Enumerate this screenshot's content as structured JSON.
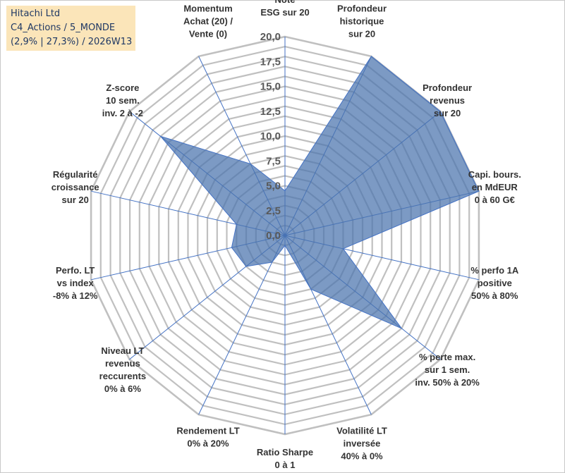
{
  "title_box": {
    "line1": "Hitachi Ltd",
    "line2": "C4_Actions / 5_MONDE",
    "line3": "(2,9% | 27,3%) / 2026W13"
  },
  "colors": {
    "grid": "#c0c0c0",
    "spoke": "#4472c4",
    "fill": "#4a73ad",
    "stroke": "#4472c4",
    "title_bg": "#fbe5b9"
  },
  "chart_data": {
    "type": "radar",
    "range": [
      0,
      20
    ],
    "tick_step": 2.5,
    "tick_labels": [
      "0,0",
      "2,5",
      "5,0",
      "7,5",
      "10,0",
      "12,5",
      "15,0",
      "17,5",
      "20,0"
    ],
    "axes": [
      {
        "label": [
          "Note",
          "ESG sur 20"
        ],
        "value": 4.5
      },
      {
        "label": [
          "Profondeur",
          "historique",
          "sur 20"
        ],
        "value": 20
      },
      {
        "label": [
          "Profondeur",
          "revenus",
          "sur 20"
        ],
        "value": 20
      },
      {
        "label": [
          "Capi. bours.",
          "en MdEUR",
          "0 à 60 G€"
        ],
        "value": 20
      },
      {
        "label": [
          "% perfo 1A",
          "positive",
          "50% à 80%"
        ],
        "value": 6
      },
      {
        "label": [
          "% perte max.",
          "sur 1 sem.",
          "inv. 50% à 20%"
        ],
        "value": 15
      },
      {
        "label": [
          "Volatilité LT",
          "inversée",
          "40% à 0%"
        ],
        "value": 6
      },
      {
        "label": [
          "Ratio Sharpe",
          "0 à 1"
        ],
        "value": 1
      },
      {
        "label": [
          "Rendement LT",
          "0% à 20%"
        ],
        "value": 3
      },
      {
        "label": [
          "Niveau LT",
          "revenus",
          "reccurents",
          "0% à 6%"
        ],
        "value": 5
      },
      {
        "label": [
          "Perfo. LT",
          "vs index",
          "-8% à 12%"
        ],
        "value": 5.5
      },
      {
        "label": [
          "Régularité",
          "croissance",
          "sur 20"
        ],
        "value": 5
      },
      {
        "label": [
          "Z-score",
          "10 sem.",
          "inv. 2 à -2"
        ],
        "value": 16
      },
      {
        "label": [
          "Momentum",
          "Achat (20) /",
          "Vente (0)"
        ],
        "value": 8
      }
    ]
  }
}
